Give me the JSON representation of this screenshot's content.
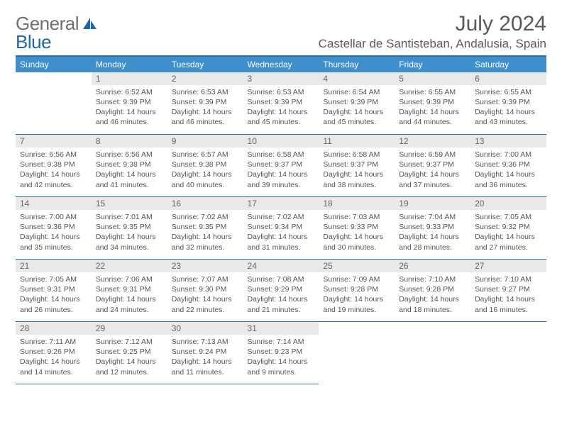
{
  "brand": {
    "part1": "General",
    "part2": "Blue"
  },
  "colors": {
    "header_blue": "#3e8fcc",
    "header_border": "#2d6fa3",
    "daynum_bg": "#e9e9e9",
    "text": "#555555",
    "title_text": "#5a5a5a",
    "logo_gray": "#6f6f6f",
    "logo_blue": "#1f68a8"
  },
  "title": "July 2024",
  "location": "Castellar de Santisteban, Andalusia, Spain",
  "weekdays": [
    "Sunday",
    "Monday",
    "Tuesday",
    "Wednesday",
    "Thursday",
    "Friday",
    "Saturday"
  ],
  "grid": [
    [
      null,
      {
        "n": "1",
        "sr": "Sunrise: 6:52 AM",
        "ss": "Sunset: 9:39 PM",
        "d1": "Daylight: 14 hours",
        "d2": "and 46 minutes."
      },
      {
        "n": "2",
        "sr": "Sunrise: 6:53 AM",
        "ss": "Sunset: 9:39 PM",
        "d1": "Daylight: 14 hours",
        "d2": "and 46 minutes."
      },
      {
        "n": "3",
        "sr": "Sunrise: 6:53 AM",
        "ss": "Sunset: 9:39 PM",
        "d1": "Daylight: 14 hours",
        "d2": "and 45 minutes."
      },
      {
        "n": "4",
        "sr": "Sunrise: 6:54 AM",
        "ss": "Sunset: 9:39 PM",
        "d1": "Daylight: 14 hours",
        "d2": "and 45 minutes."
      },
      {
        "n": "5",
        "sr": "Sunrise: 6:55 AM",
        "ss": "Sunset: 9:39 PM",
        "d1": "Daylight: 14 hours",
        "d2": "and 44 minutes."
      },
      {
        "n": "6",
        "sr": "Sunrise: 6:55 AM",
        "ss": "Sunset: 9:39 PM",
        "d1": "Daylight: 14 hours",
        "d2": "and 43 minutes."
      }
    ],
    [
      {
        "n": "7",
        "sr": "Sunrise: 6:56 AM",
        "ss": "Sunset: 9:38 PM",
        "d1": "Daylight: 14 hours",
        "d2": "and 42 minutes."
      },
      {
        "n": "8",
        "sr": "Sunrise: 6:56 AM",
        "ss": "Sunset: 9:38 PM",
        "d1": "Daylight: 14 hours",
        "d2": "and 41 minutes."
      },
      {
        "n": "9",
        "sr": "Sunrise: 6:57 AM",
        "ss": "Sunset: 9:38 PM",
        "d1": "Daylight: 14 hours",
        "d2": "and 40 minutes."
      },
      {
        "n": "10",
        "sr": "Sunrise: 6:58 AM",
        "ss": "Sunset: 9:37 PM",
        "d1": "Daylight: 14 hours",
        "d2": "and 39 minutes."
      },
      {
        "n": "11",
        "sr": "Sunrise: 6:58 AM",
        "ss": "Sunset: 9:37 PM",
        "d1": "Daylight: 14 hours",
        "d2": "and 38 minutes."
      },
      {
        "n": "12",
        "sr": "Sunrise: 6:59 AM",
        "ss": "Sunset: 9:37 PM",
        "d1": "Daylight: 14 hours",
        "d2": "and 37 minutes."
      },
      {
        "n": "13",
        "sr": "Sunrise: 7:00 AM",
        "ss": "Sunset: 9:36 PM",
        "d1": "Daylight: 14 hours",
        "d2": "and 36 minutes."
      }
    ],
    [
      {
        "n": "14",
        "sr": "Sunrise: 7:00 AM",
        "ss": "Sunset: 9:36 PM",
        "d1": "Daylight: 14 hours",
        "d2": "and 35 minutes."
      },
      {
        "n": "15",
        "sr": "Sunrise: 7:01 AM",
        "ss": "Sunset: 9:35 PM",
        "d1": "Daylight: 14 hours",
        "d2": "and 34 minutes."
      },
      {
        "n": "16",
        "sr": "Sunrise: 7:02 AM",
        "ss": "Sunset: 9:35 PM",
        "d1": "Daylight: 14 hours",
        "d2": "and 32 minutes."
      },
      {
        "n": "17",
        "sr": "Sunrise: 7:02 AM",
        "ss": "Sunset: 9:34 PM",
        "d1": "Daylight: 14 hours",
        "d2": "and 31 minutes."
      },
      {
        "n": "18",
        "sr": "Sunrise: 7:03 AM",
        "ss": "Sunset: 9:33 PM",
        "d1": "Daylight: 14 hours",
        "d2": "and 30 minutes."
      },
      {
        "n": "19",
        "sr": "Sunrise: 7:04 AM",
        "ss": "Sunset: 9:33 PM",
        "d1": "Daylight: 14 hours",
        "d2": "and 28 minutes."
      },
      {
        "n": "20",
        "sr": "Sunrise: 7:05 AM",
        "ss": "Sunset: 9:32 PM",
        "d1": "Daylight: 14 hours",
        "d2": "and 27 minutes."
      }
    ],
    [
      {
        "n": "21",
        "sr": "Sunrise: 7:05 AM",
        "ss": "Sunset: 9:31 PM",
        "d1": "Daylight: 14 hours",
        "d2": "and 26 minutes."
      },
      {
        "n": "22",
        "sr": "Sunrise: 7:06 AM",
        "ss": "Sunset: 9:31 PM",
        "d1": "Daylight: 14 hours",
        "d2": "and 24 minutes."
      },
      {
        "n": "23",
        "sr": "Sunrise: 7:07 AM",
        "ss": "Sunset: 9:30 PM",
        "d1": "Daylight: 14 hours",
        "d2": "and 22 minutes."
      },
      {
        "n": "24",
        "sr": "Sunrise: 7:08 AM",
        "ss": "Sunset: 9:29 PM",
        "d1": "Daylight: 14 hours",
        "d2": "and 21 minutes."
      },
      {
        "n": "25",
        "sr": "Sunrise: 7:09 AM",
        "ss": "Sunset: 9:28 PM",
        "d1": "Daylight: 14 hours",
        "d2": "and 19 minutes."
      },
      {
        "n": "26",
        "sr": "Sunrise: 7:10 AM",
        "ss": "Sunset: 9:28 PM",
        "d1": "Daylight: 14 hours",
        "d2": "and 18 minutes."
      },
      {
        "n": "27",
        "sr": "Sunrise: 7:10 AM",
        "ss": "Sunset: 9:27 PM",
        "d1": "Daylight: 14 hours",
        "d2": "and 16 minutes."
      }
    ],
    [
      {
        "n": "28",
        "sr": "Sunrise: 7:11 AM",
        "ss": "Sunset: 9:26 PM",
        "d1": "Daylight: 14 hours",
        "d2": "and 14 minutes."
      },
      {
        "n": "29",
        "sr": "Sunrise: 7:12 AM",
        "ss": "Sunset: 9:25 PM",
        "d1": "Daylight: 14 hours",
        "d2": "and 12 minutes."
      },
      {
        "n": "30",
        "sr": "Sunrise: 7:13 AM",
        "ss": "Sunset: 9:24 PM",
        "d1": "Daylight: 14 hours",
        "d2": "and 11 minutes."
      },
      {
        "n": "31",
        "sr": "Sunrise: 7:14 AM",
        "ss": "Sunset: 9:23 PM",
        "d1": "Daylight: 14 hours",
        "d2": "and 9 minutes."
      },
      null,
      null,
      null
    ]
  ]
}
